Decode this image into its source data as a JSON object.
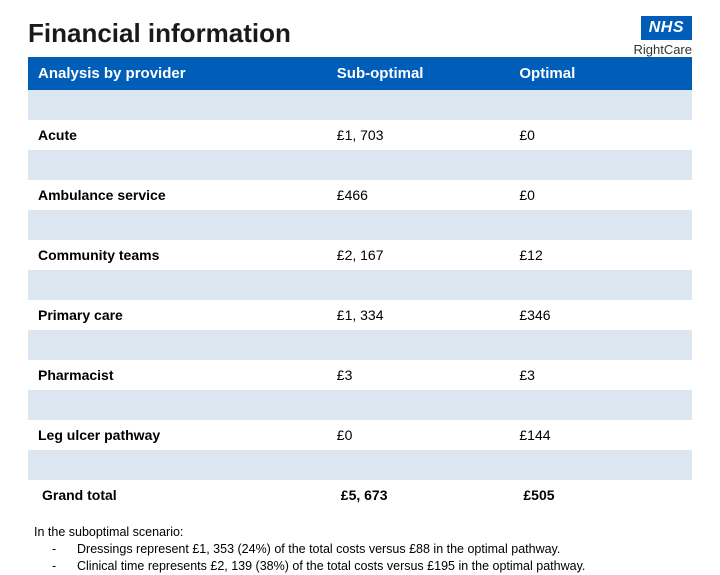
{
  "title": "Financial information",
  "logo": {
    "nhs": "NHS",
    "sub": "RightCare"
  },
  "colors": {
    "nhs_blue": "#005eb8",
    "row_shade": "#dce6f1",
    "background": "#ffffff",
    "text": "#000000"
  },
  "table": {
    "columns": [
      "Analysis by provider",
      "Sub-optimal",
      "Optimal"
    ],
    "col_widths_pct": [
      45,
      27.5,
      27.5
    ],
    "header_bg": "#005eb8",
    "header_color": "#ffffff",
    "shade_bg": "#dce6f1",
    "rows": [
      {
        "label": "Acute",
        "sub": "£1, 703",
        "opt": "£0",
        "total": false
      },
      {
        "label": "Ambulance service",
        "sub": "£466",
        "opt": "£0",
        "total": false
      },
      {
        "label": "Community teams",
        "sub": "£2, 167",
        "opt": "£12",
        "total": false
      },
      {
        "label": "Primary care",
        "sub": "£1, 334",
        "opt": "£346",
        "total": false
      },
      {
        "label": "Pharmacist",
        "sub": "£3",
        "opt": "£3",
        "total": false
      },
      {
        "label": "Leg ulcer pathway",
        "sub": "£0",
        "opt": "£144",
        "total": false
      },
      {
        "label": "Grand total",
        "sub": "£5, 673",
        "opt": "£505",
        "total": true
      }
    ]
  },
  "footnote": {
    "intro": "In the suboptimal scenario:",
    "items": [
      "Dressings represent £1, 353 (24%) of the total costs versus £88 in the optimal pathway.",
      "Clinical time represents £2, 139 (38%) of the total costs versus £195 in the optimal pathway."
    ]
  }
}
